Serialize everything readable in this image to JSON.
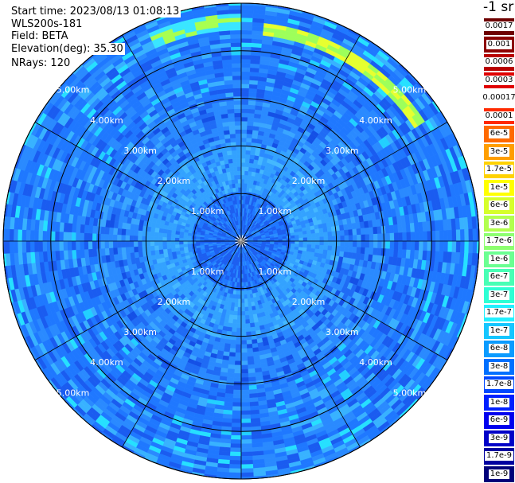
{
  "info": {
    "start_time": "Start time: 2023/08/13 01:08:13",
    "instrument": "WLS200s-181",
    "field": "Field: BETA",
    "elevation": "Elevation(deg): 35.30",
    "nrays": "NRays: 120"
  },
  "range_labels": [
    "1.00km",
    "2.00km",
    "3.00km",
    "4.00km",
    "5.00km"
  ],
  "colorbar": {
    "title": "-1 sr",
    "labels": [
      "0.0017",
      "0.001",
      "0.0006",
      "0.0003",
      "0.00017",
      "0.0001",
      "6e-5",
      "3e-5",
      "1.7e-5",
      "1e-5",
      "6e-6",
      "3e-6",
      "1.7e-6",
      "1e-6",
      "6e-7",
      "3e-7",
      "1.7e-7",
      "1e-7",
      "6e-8",
      "3e-8",
      "1.7e-8",
      "1e-8",
      "6e-9",
      "3e-9",
      "1.7e-9",
      "1e-9"
    ],
    "colors": [
      "#6e0000",
      "#8c0000",
      "#b80000",
      "#e00000",
      "#ffffff",
      "#ff2a00",
      "#ff6a00",
      "#ff9e00",
      "#ffd200",
      "#ffff00",
      "#d6ff2a",
      "#b2ff4e",
      "#8dff70",
      "#6bff92",
      "#48ffb5",
      "#2effd4",
      "#22f0ff",
      "#15c6ff",
      "#0a9bff",
      "#0070ff",
      "#0048ff",
      "#0020ff",
      "#0000ee",
      "#0000c8",
      "#0000a0",
      "#00007a"
    ]
  }
}
